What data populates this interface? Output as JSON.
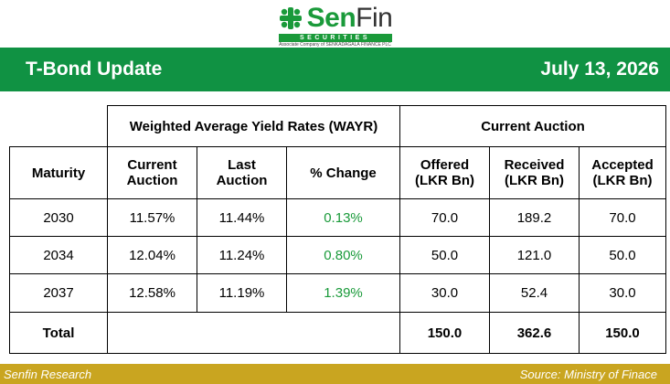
{
  "logo": {
    "brand_part1": "Sen",
    "brand_part2": "Fin",
    "subtitle": "SECURITIES",
    "associate_line": "Associate Company of SENKADAGALA FINANCE PLC",
    "mark_icon": "leaf-cross-icon"
  },
  "banner": {
    "title": "T-Bond Update",
    "date": "July 13, 2026"
  },
  "table": {
    "group_headers": {
      "wayr": "Weighted Average Yield Rates (WAYR)",
      "auction": "Current Auction"
    },
    "columns": {
      "maturity": "Maturity",
      "current_auction_l1": "Current",
      "current_auction_l2": "Auction",
      "last_auction_l1": "Last",
      "last_auction_l2": "Auction",
      "pct_change": "% Change",
      "offered_l1": "Offered",
      "offered_l2": "(LKR Bn)",
      "received_l1": "Received",
      "received_l2": "(LKR Bn)",
      "accepted_l1": "Accepted",
      "accepted_l2": "(LKR Bn)"
    },
    "rows": [
      {
        "maturity": "2030",
        "current": "11.57%",
        "last": "11.44%",
        "change": "0.13%",
        "offered": "70.0",
        "received": "189.2",
        "accepted": "70.0"
      },
      {
        "maturity": "2034",
        "current": "12.04%",
        "last": "11.24%",
        "change": "0.80%",
        "offered": "50.0",
        "received": "121.0",
        "accepted": "50.0"
      },
      {
        "maturity": "2037",
        "current": "12.58%",
        "last": "11.19%",
        "change": "1.39%",
        "offered": "30.0",
        "received": "52.4",
        "accepted": "30.0"
      }
    ],
    "total": {
      "label": "Total",
      "offered": "150.0",
      "received": "362.6",
      "accepted": "150.0"
    }
  },
  "footer": {
    "left": "Senfin Research",
    "right": "Source: Ministry of Finace"
  },
  "colors": {
    "brand_green": "#109243",
    "change_green": "#1a9a3a",
    "footer_gold": "#c9a520"
  }
}
